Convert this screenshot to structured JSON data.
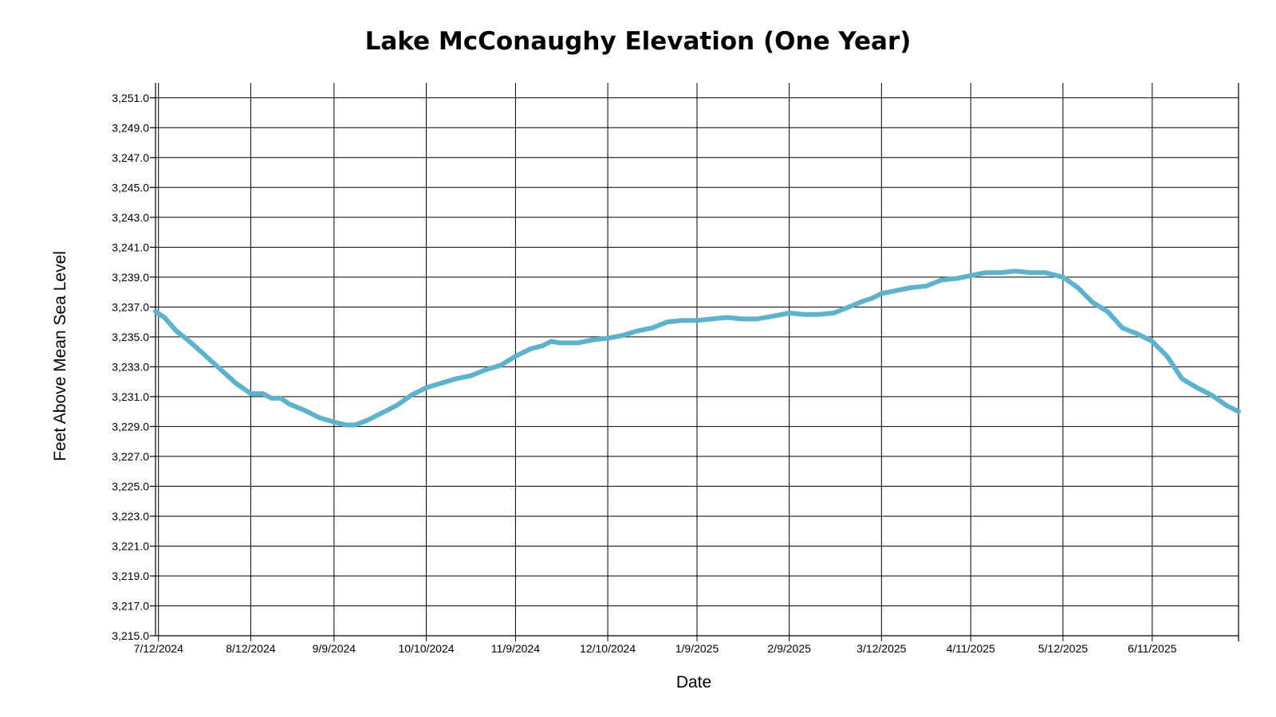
{
  "chart_data": {
    "type": "line",
    "title": "Lake McConaughy Elevation (One Year)",
    "xlabel": "Date",
    "ylabel": "Feet Above Mean Sea Level",
    "xlim": [
      "2024-07-11",
      "2025-07-10"
    ],
    "ylim": [
      3215.0,
      3252.0
    ],
    "y_ticks": [
      "3,215.0",
      "3,217.0",
      "3,219.0",
      "3,221.0",
      "3,223.0",
      "3,225.0",
      "3,227.0",
      "3,229.0",
      "3,231.0",
      "3,233.0",
      "3,235.0",
      "3,237.0",
      "3,239.0",
      "3,241.0",
      "3,243.0",
      "3,245.0",
      "3,247.0",
      "3,249.0",
      "3,251.0"
    ],
    "x_ticks": [
      {
        "date": "2024-07-12",
        "label": "7/12/2024"
      },
      {
        "date": "2024-08-12",
        "label": "8/12/2024"
      },
      {
        "date": "2024-09-09",
        "label": "9/9/2024"
      },
      {
        "date": "2024-10-10",
        "label": "10/10/2024"
      },
      {
        "date": "2024-11-09",
        "label": "11/9/2024"
      },
      {
        "date": "2024-12-10",
        "label": "12/10/2024"
      },
      {
        "date": "2025-01-09",
        "label": "1/9/2025"
      },
      {
        "date": "2025-02-09",
        "label": "2/9/2025"
      },
      {
        "date": "2025-03-12",
        "label": "3/12/2025"
      },
      {
        "date": "2025-04-11",
        "label": "4/11/2025"
      },
      {
        "date": "2025-05-12",
        "label": "5/12/2025"
      },
      {
        "date": "2025-06-11",
        "label": "6/11/2025"
      }
    ],
    "grid": true,
    "colors": {
      "series": "#5fb2cc"
    },
    "series": [
      {
        "values": [
          {
            "x": "2024-07-11",
            "y": 3236.7
          },
          {
            "x": "2024-07-14",
            "y": 3236.3
          },
          {
            "x": "2024-07-18",
            "y": 3235.4
          },
          {
            "x": "2024-07-23",
            "y": 3234.6
          },
          {
            "x": "2024-07-28",
            "y": 3233.7
          },
          {
            "x": "2024-08-02",
            "y": 3232.8
          },
          {
            "x": "2024-08-07",
            "y": 3231.9
          },
          {
            "x": "2024-08-12",
            "y": 3231.2
          },
          {
            "x": "2024-08-16",
            "y": 3231.2
          },
          {
            "x": "2024-08-19",
            "y": 3230.9
          },
          {
            "x": "2024-08-22",
            "y": 3230.9
          },
          {
            "x": "2024-08-25",
            "y": 3230.5
          },
          {
            "x": "2024-08-30",
            "y": 3230.1
          },
          {
            "x": "2024-09-04",
            "y": 3229.6
          },
          {
            "x": "2024-09-09",
            "y": 3229.3
          },
          {
            "x": "2024-09-13",
            "y": 3229.1
          },
          {
            "x": "2024-09-16",
            "y": 3229.1
          },
          {
            "x": "2024-09-20",
            "y": 3229.4
          },
          {
            "x": "2024-09-25",
            "y": 3229.9
          },
          {
            "x": "2024-09-30",
            "y": 3230.4
          },
          {
            "x": "2024-10-05",
            "y": 3231.1
          },
          {
            "x": "2024-10-10",
            "y": 3231.6
          },
          {
            "x": "2024-10-15",
            "y": 3231.9
          },
          {
            "x": "2024-10-20",
            "y": 3232.2
          },
          {
            "x": "2024-10-25",
            "y": 3232.4
          },
          {
            "x": "2024-10-30",
            "y": 3232.8
          },
          {
            "x": "2024-11-04",
            "y": 3233.1
          },
          {
            "x": "2024-11-09",
            "y": 3233.7
          },
          {
            "x": "2024-11-14",
            "y": 3234.2
          },
          {
            "x": "2024-11-18",
            "y": 3234.4
          },
          {
            "x": "2024-11-21",
            "y": 3234.7
          },
          {
            "x": "2024-11-24",
            "y": 3234.6
          },
          {
            "x": "2024-11-30",
            "y": 3234.6
          },
          {
            "x": "2024-12-05",
            "y": 3234.8
          },
          {
            "x": "2024-12-10",
            "y": 3234.9
          },
          {
            "x": "2024-12-15",
            "y": 3235.1
          },
          {
            "x": "2024-12-20",
            "y": 3235.4
          },
          {
            "x": "2024-12-25",
            "y": 3235.6
          },
          {
            "x": "2024-12-30",
            "y": 3236.0
          },
          {
            "x": "2025-01-04",
            "y": 3236.1
          },
          {
            "x": "2025-01-09",
            "y": 3236.1
          },
          {
            "x": "2025-01-14",
            "y": 3236.2
          },
          {
            "x": "2025-01-19",
            "y": 3236.3
          },
          {
            "x": "2025-01-24",
            "y": 3236.2
          },
          {
            "x": "2025-01-29",
            "y": 3236.2
          },
          {
            "x": "2025-02-04",
            "y": 3236.4
          },
          {
            "x": "2025-02-09",
            "y": 3236.6
          },
          {
            "x": "2025-02-14",
            "y": 3236.5
          },
          {
            "x": "2025-02-19",
            "y": 3236.5
          },
          {
            "x": "2025-02-24",
            "y": 3236.6
          },
          {
            "x": "2025-03-01",
            "y": 3237.0
          },
          {
            "x": "2025-03-06",
            "y": 3237.4
          },
          {
            "x": "2025-03-09",
            "y": 3237.6
          },
          {
            "x": "2025-03-12",
            "y": 3237.9
          },
          {
            "x": "2025-03-17",
            "y": 3238.1
          },
          {
            "x": "2025-03-22",
            "y": 3238.3
          },
          {
            "x": "2025-03-27",
            "y": 3238.4
          },
          {
            "x": "2025-04-01",
            "y": 3238.8
          },
          {
            "x": "2025-04-06",
            "y": 3238.9
          },
          {
            "x": "2025-04-11",
            "y": 3239.1
          },
          {
            "x": "2025-04-16",
            "y": 3239.3
          },
          {
            "x": "2025-04-21",
            "y": 3239.3
          },
          {
            "x": "2025-04-26",
            "y": 3239.4
          },
          {
            "x": "2025-05-01",
            "y": 3239.3
          },
          {
            "x": "2025-05-06",
            "y": 3239.3
          },
          {
            "x": "2025-05-12",
            "y": 3239.0
          },
          {
            "x": "2025-05-17",
            "y": 3238.3
          },
          {
            "x": "2025-05-22",
            "y": 3237.3
          },
          {
            "x": "2025-05-27",
            "y": 3236.7
          },
          {
            "x": "2025-06-01",
            "y": 3235.6
          },
          {
            "x": "2025-06-06",
            "y": 3235.2
          },
          {
            "x": "2025-06-11",
            "y": 3234.7
          },
          {
            "x": "2025-06-16",
            "y": 3233.7
          },
          {
            "x": "2025-06-21",
            "y": 3232.2
          },
          {
            "x": "2025-06-26",
            "y": 3231.6
          },
          {
            "x": "2025-07-01",
            "y": 3231.1
          },
          {
            "x": "2025-07-06",
            "y": 3230.4
          },
          {
            "x": "2025-07-10",
            "y": 3230.0
          }
        ]
      }
    ]
  }
}
